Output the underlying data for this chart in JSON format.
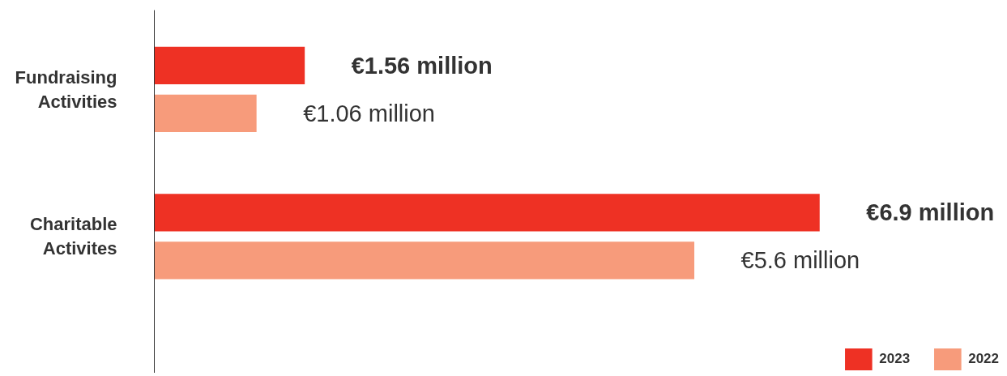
{
  "chart_data": {
    "type": "bar",
    "orientation": "horizontal",
    "categories": [
      "Fundraising Activities",
      "Charitable Activites"
    ],
    "series": [
      {
        "name": "2023",
        "color": "#ee3124",
        "values": [
          1.56,
          6.9
        ],
        "value_labels": [
          "€1.56 million",
          "€6.9 million"
        ]
      },
      {
        "name": "2022",
        "color": "#f79b7b",
        "values": [
          1.06,
          5.6
        ],
        "value_labels": [
          "€1.06 million",
          "€5.6 million"
        ]
      }
    ],
    "legend": "bottom right",
    "grid": false
  }
}
